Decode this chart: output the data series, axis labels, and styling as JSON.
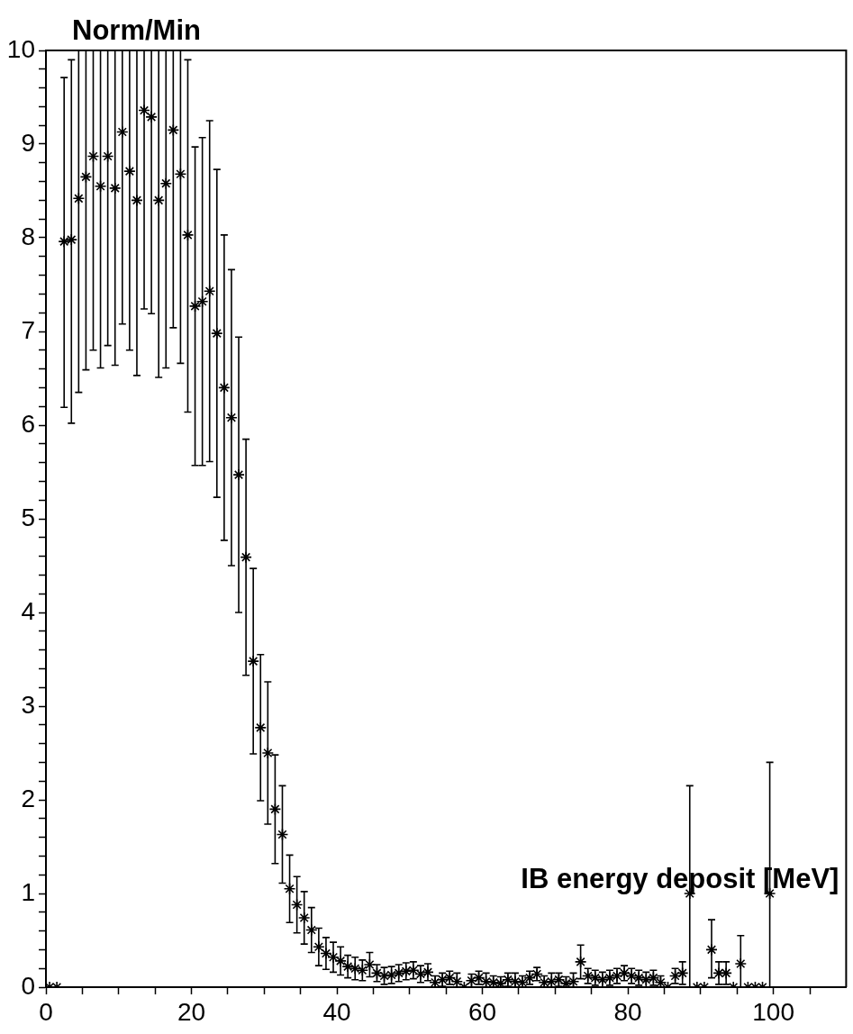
{
  "chart_data": {
    "type": "scatter",
    "xlabel": "IB energy deposit [MeV]",
    "ylabel": "Norm/Min",
    "marker": "cross",
    "grid": false,
    "color": "#000000",
    "xlim": [
      0,
      110
    ],
    "ylim": [
      0,
      10
    ],
    "xticks": [
      0,
      {
        "value": 5,
        "label": null
      },
      {
        "value": 10,
        "label": null
      },
      {
        "value": 15,
        "label": null
      },
      20,
      {
        "value": 25,
        "label": null
      },
      {
        "value": 30,
        "label": null
      },
      {
        "value": 35,
        "label": null
      },
      40,
      {
        "value": 45,
        "label": null
      },
      {
        "value": 50,
        "label": null
      },
      {
        "value": 55,
        "label": null
      },
      60,
      {
        "value": 65,
        "label": null
      },
      {
        "value": 70,
        "label": null
      },
      {
        "value": 75,
        "label": null
      },
      80,
      {
        "value": 85,
        "label": null
      },
      {
        "value": 90,
        "label": null
      },
      {
        "value": 95,
        "label": null
      },
      100,
      {
        "value": 105,
        "label": null
      }
    ],
    "yticks": [
      0,
      {
        "value": 0.2,
        "label": null
      },
      {
        "value": 0.4,
        "label": null
      },
      {
        "value": 0.6,
        "label": null
      },
      {
        "value": 0.8,
        "label": null
      },
      1,
      {
        "value": 1.2,
        "label": null
      },
      {
        "value": 1.4,
        "label": null
      },
      {
        "value": 1.6,
        "label": null
      },
      {
        "value": 1.8,
        "label": null
      },
      2,
      {
        "value": 2.2,
        "label": null
      },
      {
        "value": 2.4,
        "label": null
      },
      {
        "value": 2.6,
        "label": null
      },
      {
        "value": 2.8,
        "label": null
      },
      3,
      {
        "value": 3.2,
        "label": null
      },
      {
        "value": 3.4,
        "label": null
      },
      {
        "value": 3.6,
        "label": null
      },
      {
        "value": 3.8,
        "label": null
      },
      4,
      {
        "value": 4.2,
        "label": null
      },
      {
        "value": 4.4,
        "label": null
      },
      {
        "value": 4.6,
        "label": null
      },
      {
        "value": 4.8,
        "label": null
      },
      5,
      {
        "value": 5.2,
        "label": null
      },
      {
        "value": 5.4,
        "label": null
      },
      {
        "value": 5.6,
        "label": null
      },
      {
        "value": 5.8,
        "label": null
      },
      6,
      {
        "value": 6.2,
        "label": null
      },
      {
        "value": 6.4,
        "label": null
      },
      {
        "value": 6.6,
        "label": null
      },
      {
        "value": 6.8,
        "label": null
      },
      7,
      {
        "value": 7.2,
        "label": null
      },
      {
        "value": 7.4,
        "label": null
      },
      {
        "value": 7.6,
        "label": null
      },
      {
        "value": 7.8,
        "label": null
      },
      8,
      {
        "value": 8.2,
        "label": null
      },
      {
        "value": 8.4,
        "label": null
      },
      {
        "value": 8.6,
        "label": null
      },
      {
        "value": 8.8,
        "label": null
      },
      9,
      {
        "value": 9.2,
        "label": null
      },
      {
        "value": 9.4,
        "label": null
      },
      {
        "value": 9.6,
        "label": null
      },
      {
        "value": 9.8,
        "label": null
      },
      10
    ],
    "x": [
      0.5,
      1.5,
      2.5,
      3.5,
      4.5,
      5.5,
      6.5,
      7.5,
      8.5,
      9.5,
      10.5,
      11.5,
      12.5,
      13.5,
      14.5,
      15.5,
      16.5,
      17.5,
      18.5,
      19.5,
      20.5,
      21.5,
      22.5,
      23.5,
      24.5,
      25.5,
      26.5,
      27.5,
      28.5,
      29.5,
      30.5,
      31.5,
      32.5,
      33.5,
      34.5,
      35.5,
      36.5,
      37.5,
      38.5,
      39.5,
      40.5,
      41.5,
      42.5,
      43.5,
      44.5,
      45.5,
      46.5,
      47.5,
      48.5,
      49.5,
      50.5,
      51.5,
      52.5,
      53.5,
      54.5,
      55.5,
      56.5,
      57.5,
      58.5,
      59.5,
      60.5,
      61.5,
      62.5,
      63.5,
      64.5,
      65.5,
      66.5,
      67.5,
      68.5,
      69.5,
      70.5,
      71.5,
      72.5,
      73.5,
      74.5,
      75.5,
      76.5,
      77.5,
      78.5,
      79.5,
      80.5,
      81.5,
      82.5,
      83.5,
      84.5,
      85.5,
      86.5,
      87.5,
      88.5,
      89.5,
      90.5,
      91.5,
      92.5,
      93.5,
      94.5,
      95.5,
      96.5,
      97.5,
      98.5,
      99.5
    ],
    "values": [
      0,
      0,
      7.96,
      7.98,
      8.42,
      8.65,
      8.87,
      8.55,
      8.87,
      8.53,
      9.13,
      8.71,
      8.4,
      9.36,
      9.29,
      8.4,
      8.58,
      9.15,
      8.68,
      8.03,
      7.27,
      7.32,
      7.43,
      6.98,
      6.4,
      6.08,
      5.47,
      4.59,
      3.48,
      2.77,
      2.5,
      1.9,
      1.63,
      1.05,
      0.88,
      0.74,
      0.61,
      0.43,
      0.36,
      0.32,
      0.28,
      0.22,
      0.2,
      0.18,
      0.24,
      0.15,
      0.12,
      0.13,
      0.15,
      0.17,
      0.18,
      0.14,
      0.16,
      0.05,
      0.08,
      0.1,
      0.06,
      0,
      0.07,
      0.1,
      0.06,
      0.05,
      0.04,
      0.08,
      0.06,
      0.05,
      0.1,
      0.14,
      0.05,
      0.06,
      0.08,
      0.04,
      0.06,
      0.27,
      0.12,
      0.1,
      0.08,
      0.1,
      0.12,
      0.15,
      0.12,
      0.1,
      0.08,
      0.1,
      0.05,
      0,
      0.12,
      0.15,
      1.0,
      0,
      0,
      0.4,
      0.15,
      0.15,
      0,
      0.25,
      0,
      0,
      0,
      1.0
    ],
    "errors": [
      null,
      null,
      [
        6.19,
        9.71
      ],
      [
        6.02,
        9.9
      ],
      [
        6.35,
        10
      ],
      [
        6.59,
        10
      ],
      [
        6.8,
        10
      ],
      [
        6.61,
        10
      ],
      [
        6.85,
        10
      ],
      [
        6.64,
        10
      ],
      [
        7.08,
        10
      ],
      [
        6.8,
        10
      ],
      [
        6.53,
        10
      ],
      [
        7.24,
        10
      ],
      [
        7.19,
        10
      ],
      [
        6.51,
        10
      ],
      [
        6.61,
        10
      ],
      [
        7.04,
        10
      ],
      [
        6.66,
        10
      ],
      [
        6.14,
        9.9
      ],
      1.7,
      1.75,
      1.82,
      1.75,
      1.63,
      1.58,
      1.47,
      1.26,
      0.99,
      0.78,
      0.76,
      0.58,
      0.52,
      0.36,
      0.3,
      0.28,
      0.24,
      0.2,
      0.17,
      0.16,
      0.15,
      0.12,
      0.12,
      0.11,
      0.13,
      0.09,
      0.09,
      0.09,
      0.09,
      0.09,
      0.09,
      0.09,
      0.09,
      [
        0,
        0.12
      ],
      0.07,
      0.07,
      [
        0,
        0.15
      ],
      null,
      0.07,
      0.07,
      [
        0,
        0.15
      ],
      [
        0,
        0.12
      ],
      [
        0,
        0.11
      ],
      0.07,
      [
        0,
        0.15
      ],
      [
        0,
        0.12
      ],
      0.07,
      0.07,
      [
        0,
        0.12
      ],
      [
        0,
        0.15
      ],
      0.07,
      [
        0,
        0.11
      ],
      [
        0,
        0.15
      ],
      0.18,
      0.08,
      0.08,
      0.08,
      0.08,
      0.08,
      0.08,
      0.08,
      0.08,
      0.08,
      0.08,
      [
        0,
        0.12
      ],
      null,
      0.08,
      0.12,
      [
        0,
        2.15
      ],
      null,
      null,
      [
        0.1,
        0.72
      ],
      0.12,
      0.12,
      null,
      [
        0,
        0.55
      ],
      null,
      null,
      null,
      [
        0,
        2.4
      ]
    ]
  }
}
